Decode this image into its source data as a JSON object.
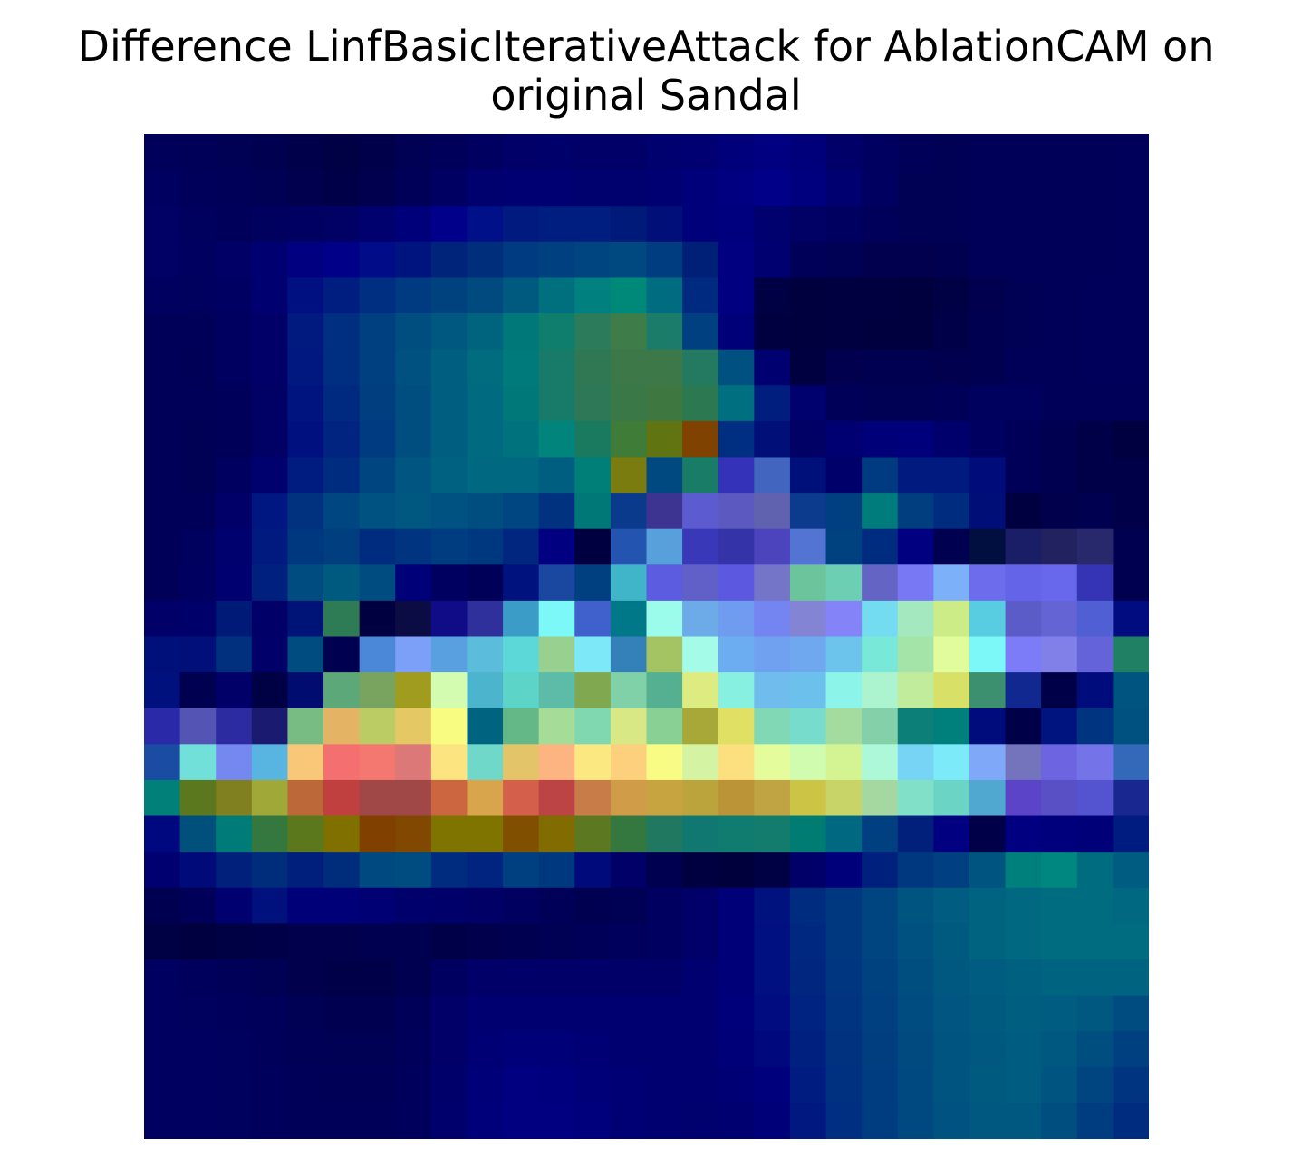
{
  "chart_data": {
    "type": "heatmap",
    "title_lines": [
      "Difference LinfBasicIterativeAttack for AblationCAM on",
      "original Sandal"
    ],
    "xlabel": "",
    "ylabel": "",
    "axes_visible": false,
    "grid": false,
    "legend": "none",
    "rows": 28,
    "cols": 28,
    "colormap": "jet-overlay",
    "cells": [
      [
        "#00005a",
        "#000058",
        "#000055",
        "#000050",
        "#00004a",
        "#000045",
        "#00004a",
        "#000055",
        "#00005a",
        "#000060",
        "#000068",
        "#00006a",
        "#000068",
        "#000068",
        "#00006e",
        "#000073",
        "#00007a",
        "#000080",
        "#00007a",
        "#000068",
        "#000060",
        "#000058",
        "#000055",
        "#000058",
        "#000058",
        "#000058",
        "#000058",
        "#00005a"
      ],
      [
        "#000060",
        "#00005a",
        "#000058",
        "#000055",
        "#00004e",
        "#000048",
        "#00004e",
        "#000058",
        "#000062",
        "#00006e",
        "#000073",
        "#000073",
        "#00006e",
        "#00006e",
        "#000073",
        "#00007a",
        "#000080",
        "#000088",
        "#00007e",
        "#00006e",
        "#000060",
        "#000055",
        "#000055",
        "#000058",
        "#000058",
        "#000058",
        "#000058",
        "#00005a"
      ],
      [
        "#000065",
        "#00005e",
        "#00005a",
        "#00005e",
        "#000062",
        "#000065",
        "#00006e",
        "#00007a",
        "#00008a",
        "#001088",
        "#001a80",
        "#001e80",
        "#001e80",
        "#001a7a",
        "#001078",
        "#00007a",
        "#00007e",
        "#00006e",
        "#000065",
        "#000060",
        "#00005a",
        "#000055",
        "#000055",
        "#000058",
        "#000058",
        "#000058",
        "#000058",
        "#00005a"
      ],
      [
        "#000065",
        "#000060",
        "#000066",
        "#000070",
        "#000080",
        "#000088",
        "#000c88",
        "#001480",
        "#00247a",
        "#002e7a",
        "#003a80",
        "#004080",
        "#004480",
        "#004880",
        "#003c80",
        "#002078",
        "#000080",
        "#000070",
        "#000058",
        "#000055",
        "#00004e",
        "#00004e",
        "#000050",
        "#000058",
        "#000058",
        "#000058",
        "#000058",
        "#00005a"
      ],
      [
        "#000060",
        "#00005e",
        "#000062",
        "#000070",
        "#001080",
        "#001e80",
        "#002e80",
        "#003a80",
        "#00427e",
        "#004a80",
        "#005a80",
        "#00707e",
        "#00807e",
        "#008878",
        "#006c80",
        "#002a80",
        "#000080",
        "#000045",
        "#00003e",
        "#000040",
        "#000040",
        "#00003e",
        "#000044",
        "#00004e",
        "#000055",
        "#000058",
        "#00005a",
        "#00005a"
      ],
      [
        "#000058",
        "#000058",
        "#000060",
        "#000068",
        "#001a80",
        "#002e80",
        "#004080",
        "#004e80",
        "#005880",
        "#00647e",
        "#00787a",
        "#107e6c",
        "#2c7c5c",
        "#3e7c4a",
        "#1c7c6a",
        "#004080",
        "#000078",
        "#000040",
        "#00003e",
        "#000040",
        "#00003e",
        "#00003e",
        "#000048",
        "#000050",
        "#000055",
        "#000058",
        "#00005a",
        "#00005a"
      ],
      [
        "#000058",
        "#000056",
        "#000060",
        "#000068",
        "#001880",
        "#002e80",
        "#004080",
        "#005080",
        "#005e80",
        "#006c7e",
        "#007a7a",
        "#187a68",
        "#307854",
        "#3c7848",
        "#3c7848",
        "#247a60",
        "#005080",
        "#000070",
        "#000040",
        "#00004e",
        "#000050",
        "#000050",
        "#00004e",
        "#000050",
        "#000058",
        "#000058",
        "#00005a",
        "#00005a"
      ],
      [
        "#000058",
        "#000058",
        "#00005a",
        "#000065",
        "#001480",
        "#002a80",
        "#003e80",
        "#004e80",
        "#005e80",
        "#006a80",
        "#00787a",
        "#187a68",
        "#2e7858",
        "#3a7848",
        "#3e7840",
        "#2c7850",
        "#007080",
        "#001e7e",
        "#00006e",
        "#000058",
        "#000055",
        "#000055",
        "#000058",
        "#00005e",
        "#00005e",
        "#000058",
        "#000058",
        "#000058"
      ],
      [
        "#000058",
        "#000055",
        "#000058",
        "#000065",
        "#00107e",
        "#002480",
        "#003a80",
        "#004e80",
        "#005e80",
        "#006a80",
        "#00727e",
        "#00847c",
        "#1a7a60",
        "#3e7c38",
        "#607412",
        "#804200",
        "#002e80",
        "#001078",
        "#000065",
        "#000073",
        "#000078",
        "#00007a",
        "#00006c",
        "#000060",
        "#000058",
        "#000050",
        "#000048",
        "#000040"
      ],
      [
        "#000058",
        "#000055",
        "#000060",
        "#00006e",
        "#001c80",
        "#002c80",
        "#004480",
        "#005680",
        "#006280",
        "#006880",
        "#006880",
        "#005e80",
        "#007e78",
        "#7a7c10",
        "#004880",
        "#187c66",
        "#3432b8",
        "#4266c0",
        "#00107a",
        "#00006a",
        "#003a80",
        "#001a80",
        "#001a80",
        "#000c7a",
        "#000058",
        "#000050",
        "#000048",
        "#000048"
      ],
      [
        "#000058",
        "#000058",
        "#000068",
        "#001680",
        "#003280",
        "#004680",
        "#005280",
        "#005880",
        "#005280",
        "#004e80",
        "#004680",
        "#003280",
        "#007878",
        "#0a3a8c",
        "#3c3490",
        "#5c5cd0",
        "#5c5ac0",
        "#6062b0",
        "#0c3a8c",
        "#004080",
        "#007c7c",
        "#003e80",
        "#002c80",
        "#000e78",
        "#000040",
        "#00004c",
        "#000050",
        "#000048"
      ],
      [
        "#000058",
        "#00005e",
        "#00006e",
        "#001a80",
        "#003880",
        "#003e80",
        "#002c80",
        "#003480",
        "#003c80",
        "#003880",
        "#002680",
        "#000080",
        "#000040",
        "#2254b0",
        "#58a0dc",
        "#3838b8",
        "#3434a8",
        "#4c44bc",
        "#5474d4",
        "#004280",
        "#002c80",
        "#000080",
        "#000050",
        "#000e40",
        "#1a1e66",
        "#222260",
        "#28286c",
        "#000050"
      ],
      [
        "#000058",
        "#000060",
        "#000070",
        "#00207e",
        "#004c80",
        "#005a80",
        "#004c80",
        "#000078",
        "#000060",
        "#000058",
        "#00127e",
        "#1a48a0",
        "#004080",
        "#40b4c8",
        "#5c5ce0",
        "#6060c8",
        "#5c58e0",
        "#7474c8",
        "#6cc49c",
        "#6ccfb4",
        "#6464c4",
        "#7878f4",
        "#7cb0f8",
        "#6c6cec",
        "#6464e8",
        "#6868ec",
        "#3434b4",
        "#000050"
      ],
      [
        "#000068",
        "#00006a",
        "#001a78",
        "#000068",
        "#001478",
        "#2e7c56",
        "#000040",
        "#0c0c44",
        "#100c88",
        "#30309c",
        "#3c9cc8",
        "#7cf8f8",
        "#4060cc",
        "#007888",
        "#9cfcec",
        "#6caae8",
        "#709cf0",
        "#7484f0",
        "#8484d4",
        "#8484f8",
        "#74dcf0",
        "#a4e8c0",
        "#ccec88",
        "#58cce0",
        "#5c5cc8",
        "#6464d4",
        "#5060d4",
        "#000c80"
      ],
      [
        "#00107a",
        "#001078",
        "#00307e",
        "#000068",
        "#004c80",
        "#000050",
        "#4c88d8",
        "#7ca0f8",
        "#58a0e0",
        "#5cbcdc",
        "#5cd8d8",
        "#98d090",
        "#7ce8f8",
        "#3480b8",
        "#a4c464",
        "#a4fce8",
        "#6cacf0",
        "#70a0f0",
        "#70a8f0",
        "#6cc4ec",
        "#78e8d8",
        "#a4e4a8",
        "#e0fc9c",
        "#7cf8f8",
        "#7c7cf8",
        "#8080e8",
        "#6464d8",
        "#208064"
      ],
      [
        "#00107c",
        "#000050",
        "#000068",
        "#000044",
        "#000c70",
        "#5ca878",
        "#78a460",
        "#a09c20",
        "#d4fcb0",
        "#4cb4cc",
        "#5cd4c8",
        "#5cbca8",
        "#80a850",
        "#80d0a8",
        "#54b090",
        "#dcec80",
        "#88f0e0",
        "#70bcec",
        "#6cc0ec",
        "#8cf4e8",
        "#acf4d0",
        "#c0ec9c",
        "#d8e068",
        "#3c9070",
        "#102890",
        "#000048",
        "#000c7c",
        "#005480"
      ],
      [
        "#2a2aa8",
        "#5454b4",
        "#2c2ca0",
        "#1a1a70",
        "#78bc84",
        "#e4b464",
        "#bccc64",
        "#e4c864",
        "#f8fc80",
        "#006480",
        "#64b888",
        "#a4dc98",
        "#80d8b0",
        "#d8e884",
        "#88d094",
        "#a8a838",
        "#e0e064",
        "#80d8b4",
        "#78dccc",
        "#a4dca0",
        "#84d0a8",
        "#0c8078",
        "#00807c",
        "#000c7c",
        "#000048",
        "#001480",
        "#003480",
        "#005080"
      ],
      [
        "#1a4ca4",
        "#70e0d8",
        "#7488f0",
        "#58b4e0",
        "#f8c878",
        "#f47070",
        "#f47870",
        "#dc7878",
        "#fce480",
        "#70d8c8",
        "#e4c468",
        "#fcb480",
        "#fce880",
        "#fcd07c",
        "#f8fc84",
        "#d4f4a4",
        "#fce080",
        "#e4fc9c",
        "#d0fcb0",
        "#d4f494",
        "#acf8d8",
        "#78d4f4",
        "#7ceaf8",
        "#80a8f8",
        "#7474bc",
        "#6c64e0",
        "#7474e8",
        "#3468b8"
      ],
      [
        "#008078",
        "#5c781e",
        "#808020",
        "#a0a838",
        "#bc6838",
        "#c04040",
        "#a04848",
        "#a04848",
        "#cc6640",
        "#d8a44c",
        "#d4604c",
        "#bc4444",
        "#c87c48",
        "#d09c48",
        "#c8a440",
        "#bca43c",
        "#bc9438",
        "#c0a444",
        "#ccc444",
        "#c8d468",
        "#a4d8a0",
        "#80e0c8",
        "#6cd4c4",
        "#50a8d0",
        "#5c44c8",
        "#5850c4",
        "#5454d0",
        "#182890"
      ],
      [
        "#000880",
        "#00507c",
        "#007c78",
        "#347840",
        "#5c781c",
        "#807000",
        "#804000",
        "#804800",
        "#807400",
        "#807400",
        "#805000",
        "#806c00",
        "#5c7820",
        "#347840",
        "#207860",
        "#107870",
        "#107c70",
        "#147c6c",
        "#007c72",
        "#006880",
        "#004080",
        "#00207c",
        "#000080",
        "#000048",
        "#000080",
        "#00007c",
        "#000078",
        "#001c80"
      ],
      [
        "#000070",
        "#000a78",
        "#00207c",
        "#002c7c",
        "#001e7c",
        "#002c7c",
        "#004880",
        "#004c80",
        "#002c80",
        "#002480",
        "#004080",
        "#003880",
        "#000a7a",
        "#000068",
        "#000050",
        "#000040",
        "#00003c",
        "#000044",
        "#000068",
        "#00007a",
        "#00207e",
        "#003880",
        "#004080",
        "#005480",
        "#00807c",
        "#008880",
        "#006c80",
        "#005c80"
      ],
      [
        "#000050",
        "#000058",
        "#000070",
        "#00107c",
        "#000078",
        "#000078",
        "#000074",
        "#00006c",
        "#00006a",
        "#000066",
        "#000060",
        "#000058",
        "#000050",
        "#000055",
        "#000060",
        "#000068",
        "#000078",
        "#00127e",
        "#002c80",
        "#003880",
        "#004480",
        "#005480",
        "#005c80",
        "#006480",
        "#006880",
        "#006c80",
        "#006c80",
        "#006880"
      ],
      [
        "#000044",
        "#000040",
        "#000044",
        "#000048",
        "#00004c",
        "#00004c",
        "#000050",
        "#000050",
        "#000048",
        "#00004c",
        "#000050",
        "#000054",
        "#000058",
        "#00005c",
        "#000060",
        "#000068",
        "#000078",
        "#001080",
        "#002880",
        "#003880",
        "#004480",
        "#005080",
        "#005a80",
        "#006480",
        "#006880",
        "#006c80",
        "#006c80",
        "#006c80"
      ],
      [
        "#000060",
        "#00005c",
        "#000058",
        "#000054",
        "#00004c",
        "#000048",
        "#000048",
        "#000050",
        "#000060",
        "#000068",
        "#000068",
        "#000068",
        "#000068",
        "#000068",
        "#000068",
        "#000070",
        "#000078",
        "#001080",
        "#002680",
        "#003680",
        "#004280",
        "#004e80",
        "#005880",
        "#005c80",
        "#006080",
        "#006480",
        "#006480",
        "#006480"
      ],
      [
        "#000060",
        "#00005e",
        "#00005c",
        "#00005a",
        "#000054",
        "#000050",
        "#000050",
        "#000058",
        "#000068",
        "#000070",
        "#000070",
        "#000070",
        "#000070",
        "#000070",
        "#000070",
        "#000070",
        "#00007a",
        "#000c80",
        "#002280",
        "#003480",
        "#004080",
        "#004c80",
        "#005680",
        "#005a80",
        "#005e80",
        "#005c80",
        "#005880",
        "#004c80"
      ],
      [
        "#000060",
        "#000060",
        "#00005e",
        "#00005a",
        "#000056",
        "#000054",
        "#000054",
        "#00005a",
        "#000068",
        "#000074",
        "#000078",
        "#000078",
        "#000074",
        "#000070",
        "#000070",
        "#000070",
        "#000078",
        "#00087e",
        "#002080",
        "#003280",
        "#003e80",
        "#004a80",
        "#005480",
        "#005880",
        "#005c80",
        "#005880",
        "#004e80",
        "#004080"
      ],
      [
        "#000060",
        "#000060",
        "#00005e",
        "#00005c",
        "#000058",
        "#000056",
        "#000056",
        "#00005c",
        "#00006a",
        "#000078",
        "#000080",
        "#00007e",
        "#000078",
        "#000074",
        "#000070",
        "#000070",
        "#000074",
        "#00007c",
        "#001c80",
        "#003080",
        "#003c80",
        "#004880",
        "#005480",
        "#005a80",
        "#005c80",
        "#005480",
        "#004480",
        "#003480"
      ],
      [
        "#000060",
        "#000060",
        "#00005e",
        "#00005c",
        "#000058",
        "#000058",
        "#000058",
        "#00005c",
        "#00006c",
        "#00007a",
        "#000080",
        "#000080",
        "#00007c",
        "#000074",
        "#000070",
        "#00006e",
        "#000070",
        "#000078",
        "#001880",
        "#002e80",
        "#003c80",
        "#004880",
        "#005280",
        "#005880",
        "#005880",
        "#004e80",
        "#003c80",
        "#002c80"
      ]
    ]
  }
}
